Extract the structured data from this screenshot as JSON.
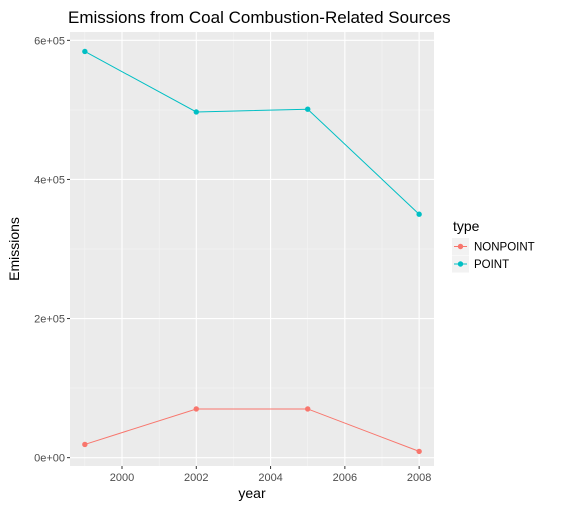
{
  "chart_data": {
    "type": "line",
    "title": "Emissions from Coal Combustion-Related Sources",
    "xlabel": "year",
    "ylabel": "Emissions",
    "xlim": [
      1998.6,
      2008.4
    ],
    "ylim": [
      -12000,
      612000
    ],
    "x_ticks": [
      2000,
      2002,
      2004,
      2006,
      2008
    ],
    "x_tick_labels": [
      "2000",
      "2002",
      "2004",
      "2006",
      "2008"
    ],
    "y_ticks": [
      0,
      200000,
      400000,
      600000
    ],
    "y_tick_labels": [
      "0e+00",
      "2e+05",
      "4e+05",
      "6e+05"
    ],
    "grid": true,
    "legend": {
      "title": "type",
      "position": "right"
    },
    "series": [
      {
        "name": "NONPOINT",
        "color": "#F8766D",
        "x": [
          1999,
          2002,
          2005,
          2008
        ],
        "y": [
          19000,
          70000,
          70000,
          9000
        ]
      },
      {
        "name": "POINT",
        "color": "#00BFC4",
        "x": [
          1999,
          2002,
          2005,
          2008
        ],
        "y": [
          584000,
          497000,
          501000,
          350000
        ]
      }
    ]
  }
}
